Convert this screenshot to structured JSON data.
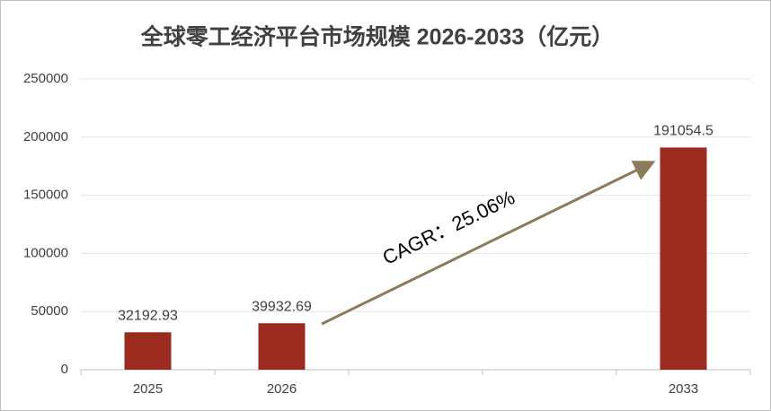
{
  "chart_data": {
    "type": "bar",
    "title": "全球零工经济平台市场规模 2026-2033（亿元）",
    "categories": [
      "2025",
      "2026",
      null,
      null,
      "2033"
    ],
    "values": [
      32192.93,
      39932.69,
      null,
      null,
      191054.5
    ],
    "color": "#9b2b1f",
    "ylim": [
      0,
      250000
    ],
    "yticks": [
      0,
      50000,
      100000,
      150000,
      200000,
      250000
    ],
    "grid": true,
    "annotation": "CAGR：25.06%"
  }
}
